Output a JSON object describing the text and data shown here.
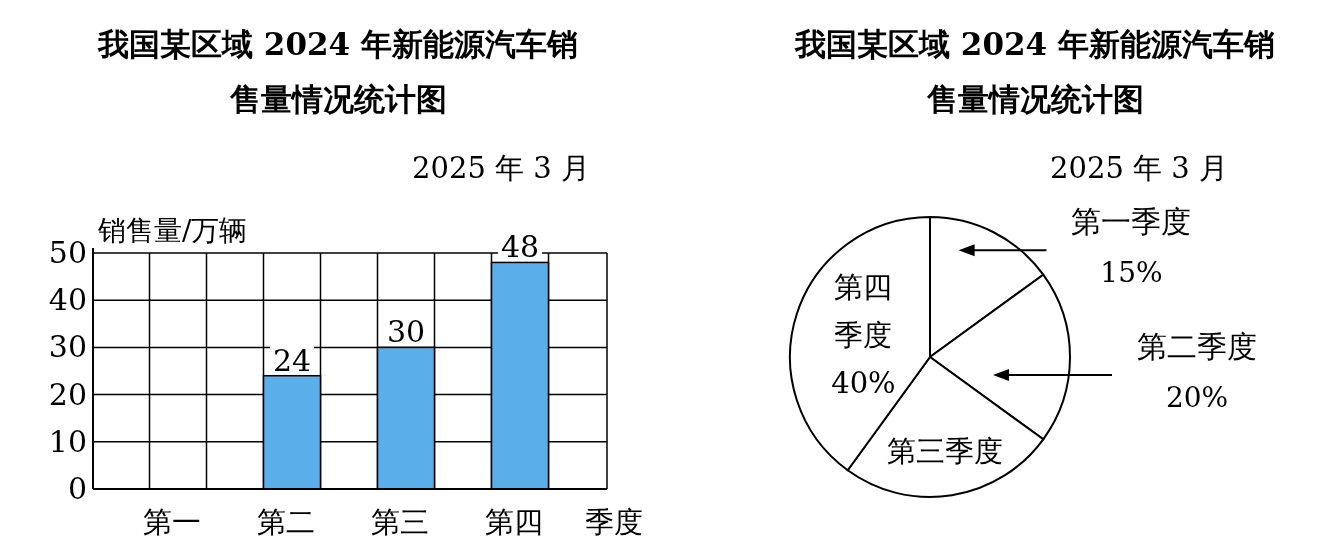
{
  "chart_data": [
    {
      "type": "bar",
      "title": "我国某区域 2024 年新能源汽车销售量情况统计图",
      "subtitle": "2025 年 3 月",
      "ylabel": "销售量/万辆",
      "xlabel": "季度",
      "categories": [
        "第一",
        "第二",
        "第三",
        "第四"
      ],
      "values": [
        null,
        24,
        30,
        48
      ],
      "color": "#5aaeea",
      "ylim": [
        0,
        50
      ],
      "yticks": [
        0,
        10,
        20,
        30,
        40,
        50
      ],
      "grid": true,
      "data_labels": true
    },
    {
      "type": "pie",
      "title": "我国某区域 2024 年新能源汽车销售量情况统计图",
      "subtitle": "2025 年 3 月",
      "categories": [
        "第一季度",
        "第二季度",
        "第三季度",
        "第四季度"
      ],
      "values": [
        15,
        20,
        25,
        40
      ],
      "colors": [
        "#ffffff",
        "#ffffff",
        "#ffffff",
        "#ffffff"
      ],
      "value_labels": [
        "15%",
        "20%",
        null,
        "40%"
      ]
    }
  ]
}
